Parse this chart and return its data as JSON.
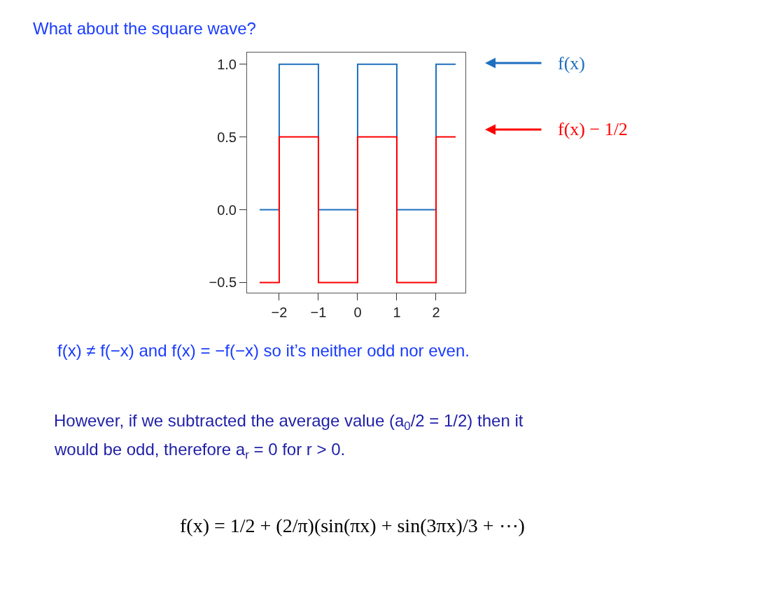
{
  "chart_data": {
    "type": "step",
    "title": "What about the square wave?",
    "x": [
      -2.5,
      -2,
      -1,
      0,
      1,
      2,
      2.5
    ],
    "series": [
      {
        "name": "f(x)",
        "color": "#1f6fbf",
        "values": [
          0,
          1,
          0,
          1,
          0,
          1,
          1
        ]
      },
      {
        "name": "f(x) − 1/2",
        "color": "#ff0000",
        "values": [
          -0.5,
          0.5,
          -0.5,
          0.5,
          -0.5,
          0.5,
          0.5
        ]
      }
    ],
    "xlim": [
      -2.82,
      2.75
    ],
    "ylim": [
      -0.57,
      1.08
    ],
    "xticks": [
      {
        "value": -2,
        "label": "−2"
      },
      {
        "value": -1,
        "label": "−1"
      },
      0,
      1,
      2
    ],
    "yticks": [
      {
        "value": 1,
        "label": "1.0"
      },
      0.5,
      {
        "value": 0,
        "label": "0.0"
      },
      {
        "value": -0.5,
        "label": "−0.5"
      }
    ],
    "grid": false,
    "legend": "right",
    "marker": "none",
    "line_style": "solid",
    "annotations": [
      "f(x) ≠ f(−x) and f(x) = −f(−x) so it’s neither odd nor even.",
      "However, if we subtracted the average value (a$_{0}$/2 = 1/2) then it",
      "would be odd, therefore a$_{r}$ = 0 for r > 0.",
      "f(x) = 1/2 + (2/π)(sin(πx) + sin(3πx)/3 + ⋯)"
    ]
  }
}
